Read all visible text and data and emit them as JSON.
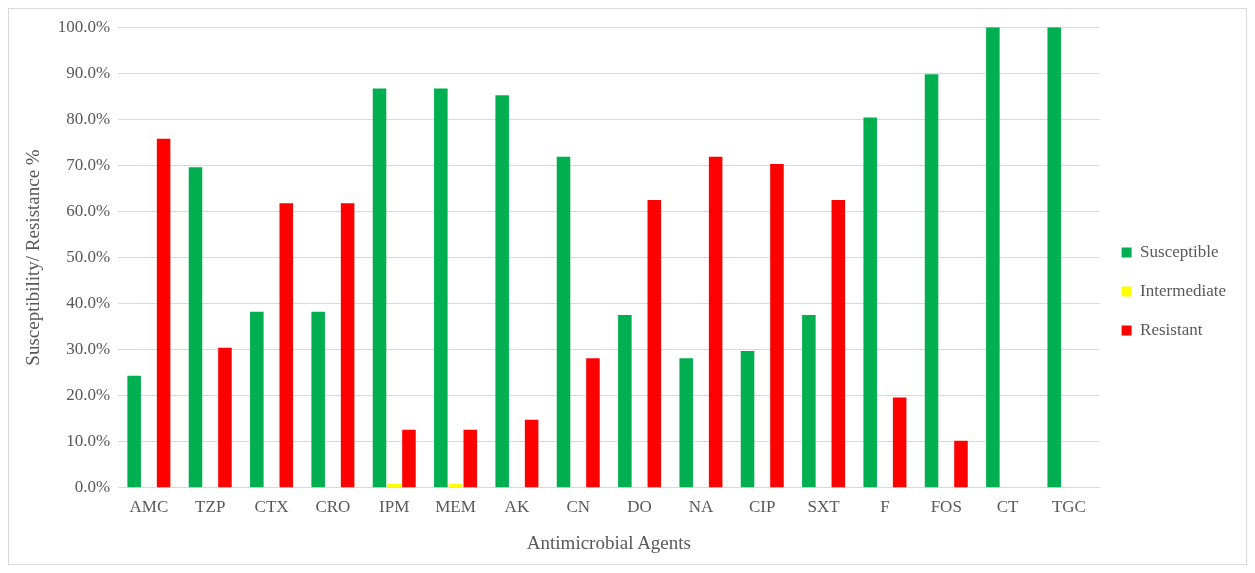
{
  "chart_data": {
    "type": "bar",
    "xlabel": "Antimicrobial Agents",
    "ylabel": "Susceptibility/ Resistance %",
    "categories": [
      "AMC",
      "TZP",
      "CTX",
      "CRO",
      "IPM",
      "MEM",
      "AK",
      "CN",
      "DO",
      "NA",
      "CIP",
      "SXT",
      "F",
      "FOS",
      "CT",
      "TGC"
    ],
    "series": [
      {
        "name": "Susceptible",
        "color": "#00b050",
        "values": [
          24.3,
          69.6,
          38.2,
          38.2,
          86.7,
          86.7,
          85.2,
          71.9,
          37.5,
          28.1,
          29.7,
          37.5,
          80.4,
          89.8,
          100,
          100
        ]
      },
      {
        "name": "Intermediate",
        "color": "#ffff00",
        "values": [
          0,
          0,
          0,
          0,
          0.8,
          0.8,
          0,
          0,
          0,
          0,
          0,
          0,
          0,
          0,
          0,
          0
        ]
      },
      {
        "name": "Resistant",
        "color": "#ff0000",
        "values": [
          75.8,
          30.4,
          61.8,
          61.8,
          12.6,
          12.6,
          14.8,
          28.1,
          62.5,
          71.9,
          70.3,
          62.5,
          19.6,
          10.2,
          0,
          0
        ]
      }
    ],
    "ylim": [
      0,
      100
    ],
    "yticks": [
      {
        "value": 0,
        "label": "0.0%"
      },
      {
        "value": 10,
        "label": "10.0%"
      },
      {
        "value": 20,
        "label": "20.0%"
      },
      {
        "value": 30,
        "label": "30.0%"
      },
      {
        "value": 40,
        "label": "40.0%"
      },
      {
        "value": 50,
        "label": "50.0%"
      },
      {
        "value": 60,
        "label": "60.0%"
      },
      {
        "value": 70,
        "label": "70.0%"
      },
      {
        "value": 80,
        "label": "80.0%"
      },
      {
        "value": 90,
        "label": "90.0%"
      },
      {
        "value": 100,
        "label": "100.0%"
      }
    ],
    "grid": "y",
    "legend": "right"
  }
}
